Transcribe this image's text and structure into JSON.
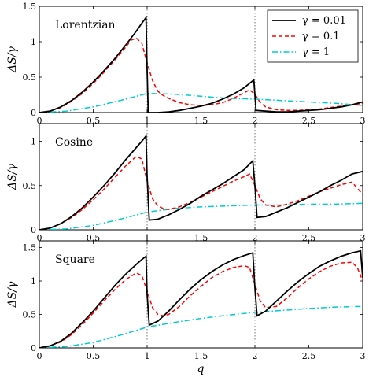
{
  "figure": {
    "xlabel": "q",
    "ylabel": "ΔS/γ",
    "legend": [
      {
        "label": "γ = 0.01",
        "color": "#000000",
        "style": "solid"
      },
      {
        "label": "γ = 0.1",
        "color": "#ff0000",
        "style": "dashed"
      },
      {
        "label": "γ = 1",
        "color": "#00cccc",
        "style": "dashdot"
      }
    ]
  },
  "chart_data": [
    {
      "type": "line",
      "panel_label": "Lorentzian",
      "xlim": [
        0,
        3
      ],
      "ylim": [
        0,
        1.5
      ],
      "xticks": [
        "0",
        "0.5",
        "1",
        "1.5",
        "2",
        "2.5",
        "3"
      ],
      "yticks": [
        "0",
        "0.5",
        "1",
        "1.5"
      ],
      "vlines": [
        1,
        2
      ],
      "legend_position": "top-right",
      "series": [
        {
          "name": "γ = 0.01",
          "color": "#000000",
          "style": "solid",
          "x": [
            0,
            0.1,
            0.2,
            0.3,
            0.4,
            0.5,
            0.6,
            0.7,
            0.8,
            0.9,
            0.95,
            0.99,
            1.0,
            1.01,
            1.1,
            1.2,
            1.3,
            1.4,
            1.5,
            1.6,
            1.7,
            1.8,
            1.9,
            1.99,
            2.0,
            2.01,
            2.1,
            2.2,
            2.3,
            2.4,
            2.5,
            2.6,
            2.7,
            2.8,
            2.9,
            3.0
          ],
          "y": [
            0,
            0.02,
            0.08,
            0.17,
            0.29,
            0.43,
            0.59,
            0.76,
            0.95,
            1.15,
            1.26,
            1.34,
            0.6,
            0.0,
            0.0,
            0.01,
            0.03,
            0.06,
            0.09,
            0.13,
            0.19,
            0.26,
            0.35,
            0.46,
            0.25,
            0.03,
            0.02,
            0.01,
            0.01,
            0.02,
            0.03,
            0.04,
            0.06,
            0.08,
            0.11,
            0.15
          ]
        },
        {
          "name": "γ = 0.1",
          "color": "#ff0000",
          "style": "dashed",
          "x": [
            0,
            0.1,
            0.2,
            0.3,
            0.4,
            0.5,
            0.6,
            0.7,
            0.8,
            0.85,
            0.9,
            0.95,
            1.0,
            1.05,
            1.1,
            1.15,
            1.2,
            1.3,
            1.4,
            1.5,
            1.6,
            1.7,
            1.8,
            1.9,
            1.95,
            2.0,
            2.05,
            2.1,
            2.2,
            2.3,
            2.4,
            2.5,
            2.6,
            2.7,
            2.8,
            2.9,
            3.0
          ],
          "y": [
            0,
            0.02,
            0.07,
            0.16,
            0.27,
            0.41,
            0.57,
            0.74,
            0.92,
            1.02,
            1.05,
            0.98,
            0.7,
            0.45,
            0.3,
            0.24,
            0.2,
            0.14,
            0.11,
            0.1,
            0.11,
            0.14,
            0.2,
            0.28,
            0.32,
            0.26,
            0.14,
            0.08,
            0.04,
            0.03,
            0.03,
            0.04,
            0.05,
            0.07,
            0.09,
            0.11,
            0.13
          ]
        },
        {
          "name": "γ = 1",
          "color": "#00cccc",
          "style": "dashdot",
          "x": [
            0,
            0.25,
            0.5,
            0.75,
            1.0,
            1.25,
            1.5,
            1.75,
            2.0,
            2.25,
            2.5,
            2.75,
            3.0
          ],
          "y": [
            0,
            0.02,
            0.08,
            0.17,
            0.27,
            0.26,
            0.23,
            0.2,
            0.19,
            0.17,
            0.15,
            0.13,
            0.1
          ]
        }
      ]
    },
    {
      "type": "line",
      "panel_label": "Cosine",
      "xlim": [
        0,
        3
      ],
      "ylim": [
        0,
        1.2
      ],
      "xticks": [
        "0",
        "0.5",
        "1",
        "1.5",
        "2",
        "2.5",
        "3"
      ],
      "yticks": [
        "0",
        "0.5",
        "1"
      ],
      "vlines": [
        1,
        2
      ],
      "series": [
        {
          "name": "γ = 0.01",
          "color": "#000000",
          "style": "solid",
          "x": [
            0,
            0.1,
            0.2,
            0.3,
            0.4,
            0.5,
            0.6,
            0.7,
            0.8,
            0.9,
            0.95,
            0.99,
            1.0,
            1.02,
            1.1,
            1.2,
            1.3,
            1.4,
            1.5,
            1.6,
            1.7,
            1.8,
            1.9,
            1.98,
            2.0,
            2.02,
            2.1,
            2.2,
            2.3,
            2.4,
            2.5,
            2.6,
            2.7,
            2.8,
            2.9,
            3.0
          ],
          "y": [
            0,
            0.02,
            0.07,
            0.15,
            0.25,
            0.37,
            0.5,
            0.64,
            0.79,
            0.93,
            1.0,
            1.06,
            0.6,
            0.11,
            0.12,
            0.17,
            0.23,
            0.3,
            0.38,
            0.45,
            0.52,
            0.6,
            0.68,
            0.78,
            0.5,
            0.14,
            0.15,
            0.2,
            0.25,
            0.31,
            0.37,
            0.43,
            0.5,
            0.56,
            0.63,
            0.66
          ]
        },
        {
          "name": "γ = 0.1",
          "color": "#ff0000",
          "style": "dashed",
          "x": [
            0,
            0.1,
            0.2,
            0.3,
            0.4,
            0.5,
            0.6,
            0.7,
            0.8,
            0.9,
            0.95,
            1.0,
            1.05,
            1.1,
            1.15,
            1.2,
            1.3,
            1.4,
            1.5,
            1.6,
            1.7,
            1.8,
            1.9,
            1.95,
            2.0,
            2.05,
            2.1,
            2.2,
            2.3,
            2.4,
            2.5,
            2.6,
            2.7,
            2.8,
            2.9,
            3.0
          ],
          "y": [
            0,
            0.02,
            0.07,
            0.14,
            0.23,
            0.34,
            0.46,
            0.59,
            0.72,
            0.83,
            0.8,
            0.55,
            0.35,
            0.27,
            0.24,
            0.23,
            0.26,
            0.31,
            0.37,
            0.43,
            0.49,
            0.55,
            0.6,
            0.63,
            0.5,
            0.35,
            0.28,
            0.26,
            0.29,
            0.33,
            0.38,
            0.43,
            0.47,
            0.51,
            0.54,
            0.4
          ]
        },
        {
          "name": "γ = 1",
          "color": "#00cccc",
          "style": "dashdot",
          "x": [
            0,
            0.25,
            0.5,
            0.75,
            1.0,
            1.25,
            1.5,
            1.75,
            2.0,
            2.25,
            2.5,
            2.75,
            3.0
          ],
          "y": [
            0,
            0.01,
            0.05,
            0.12,
            0.2,
            0.24,
            0.26,
            0.27,
            0.28,
            0.28,
            0.29,
            0.29,
            0.3
          ]
        }
      ]
    },
    {
      "type": "line",
      "panel_label": "Square",
      "xlim": [
        0,
        3
      ],
      "ylim": [
        0,
        1.6
      ],
      "xticks": [
        "0",
        "0.5",
        "1",
        "1.5",
        "2",
        "2.5",
        "3"
      ],
      "yticks": [
        "0",
        "0.5",
        "1",
        "1.5"
      ],
      "vlines": [
        1,
        2
      ],
      "series": [
        {
          "name": "γ = 0.01",
          "color": "#000000",
          "style": "solid",
          "x": [
            0,
            0.1,
            0.2,
            0.3,
            0.4,
            0.5,
            0.6,
            0.7,
            0.8,
            0.9,
            0.95,
            0.99,
            1.0,
            1.02,
            1.1,
            1.2,
            1.3,
            1.4,
            1.5,
            1.6,
            1.7,
            1.8,
            1.9,
            1.98,
            2.0,
            2.02,
            2.1,
            2.2,
            2.3,
            2.4,
            2.5,
            2.6,
            2.7,
            2.8,
            2.9,
            2.98,
            3.0
          ],
          "y": [
            0,
            0.03,
            0.1,
            0.22,
            0.38,
            0.55,
            0.74,
            0.93,
            1.1,
            1.25,
            1.32,
            1.37,
            0.8,
            0.34,
            0.4,
            0.55,
            0.72,
            0.88,
            1.02,
            1.14,
            1.24,
            1.32,
            1.38,
            1.42,
            0.9,
            0.48,
            0.55,
            0.7,
            0.85,
            0.99,
            1.11,
            1.22,
            1.3,
            1.37,
            1.42,
            1.45,
            1.05
          ]
        },
        {
          "name": "γ = 0.1",
          "color": "#ff0000",
          "style": "dashed",
          "x": [
            0,
            0.1,
            0.2,
            0.3,
            0.4,
            0.5,
            0.6,
            0.7,
            0.8,
            0.9,
            0.95,
            1.0,
            1.05,
            1.1,
            1.15,
            1.2,
            1.3,
            1.4,
            1.5,
            1.6,
            1.7,
            1.8,
            1.9,
            1.95,
            2.0,
            2.05,
            2.1,
            2.2,
            2.3,
            2.4,
            2.5,
            2.6,
            2.7,
            2.8,
            2.9,
            2.95,
            3.0
          ],
          "y": [
            0,
            0.03,
            0.09,
            0.2,
            0.35,
            0.52,
            0.7,
            0.87,
            1.02,
            1.12,
            1.08,
            0.85,
            0.6,
            0.5,
            0.48,
            0.5,
            0.62,
            0.78,
            0.92,
            1.05,
            1.14,
            1.2,
            1.23,
            1.2,
            0.95,
            0.7,
            0.6,
            0.62,
            0.75,
            0.9,
            1.03,
            1.14,
            1.22,
            1.27,
            1.28,
            1.2,
            1.0
          ]
        },
        {
          "name": "γ = 1",
          "color": "#00cccc",
          "style": "dashdot",
          "x": [
            0,
            0.25,
            0.5,
            0.75,
            1.0,
            1.25,
            1.5,
            1.75,
            2.0,
            2.25,
            2.5,
            2.75,
            3.0
          ],
          "y": [
            0,
            0.02,
            0.08,
            0.19,
            0.31,
            0.38,
            0.44,
            0.49,
            0.53,
            0.56,
            0.59,
            0.61,
            0.62
          ]
        }
      ]
    }
  ]
}
